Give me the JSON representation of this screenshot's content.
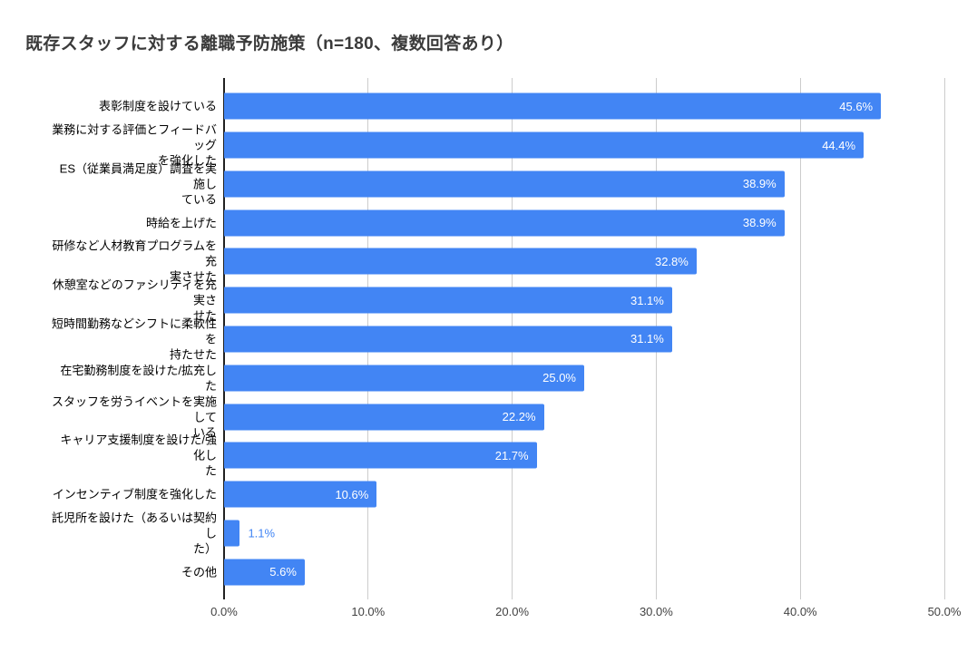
{
  "page": {
    "background": "#ffffff"
  },
  "chart_data": {
    "type": "bar",
    "orientation": "horizontal",
    "title": "既存スタッフに対する離職予防施策（n=180、複数回答あり）",
    "categories": [
      "表彰制度を設けている",
      "業務に対する評価とフィードバッグを強化した",
      "ES（従業員満足度）調査を実施している",
      "時給を上げた",
      "研修など人材教育プログラムを充実させた",
      "休憩室などのファシリティを充実させた",
      "短時間勤務などシフトに柔軟性を持たせた",
      "在宅勤務制度を設けた/拡充した",
      "スタッフを労うイベントを実施している",
      "キャリア支援制度を設けた/強化した",
      "インセンティブ制度を強化した",
      "託児所を設けた（あるいは契約した）",
      "その他"
    ],
    "label_lines": [
      [
        "表彰制度を設けている"
      ],
      [
        "業務に対する評価とフィードバッグ",
        "を強化した"
      ],
      [
        "ES（従業員満足度）調査を実施し",
        "ている"
      ],
      [
        "時給を上げた"
      ],
      [
        "研修など人材教育プログラムを充",
        "実させた"
      ],
      [
        "休憩室などのファシリティを充実さ",
        "せた"
      ],
      [
        "短時間勤務などシフトに柔軟性を",
        "持たせた"
      ],
      [
        "在宅勤務制度を設けた/拡充した"
      ],
      [
        "スタッフを労うイベントを実施して",
        "いる"
      ],
      [
        "キャリア支援制度を設けた/強化し",
        "た"
      ],
      [
        "インセンティブ制度を強化した"
      ],
      [
        "託児所を設けた（あるいは契約し",
        "た）"
      ],
      [
        "その他"
      ]
    ],
    "values": [
      45.6,
      44.4,
      38.9,
      38.9,
      32.8,
      31.1,
      31.1,
      25.0,
      22.2,
      21.7,
      10.6,
      1.1,
      5.6
    ],
    "value_labels": [
      "45.6%",
      "44.4%",
      "38.9%",
      "38.9%",
      "32.8%",
      "31.1%",
      "31.1%",
      "25.0%",
      "22.2%",
      "21.7%",
      "10.6%",
      "1.1%",
      "5.6%"
    ],
    "xlabel": "",
    "ylabel": "",
    "xlim": [
      0,
      50
    ],
    "x_ticks": [
      {
        "value": 0,
        "label": "0.0%"
      },
      {
        "value": 10,
        "label": "10.0%"
      },
      {
        "value": 20,
        "label": "20.0%"
      },
      {
        "value": 30,
        "label": "30.0%"
      },
      {
        "value": 40,
        "label": "40.0%"
      },
      {
        "value": 50,
        "label": "50.0%"
      }
    ],
    "grid": true,
    "legend": "none",
    "colors": {
      "bar": "#4285f4",
      "grid": "#cccccc",
      "axis": "#212121",
      "title": "#3b3b3b",
      "value_label_inside": "#ffffff",
      "value_label_outside": "#4285f4",
      "tick_label": "#424242",
      "category_label": "#000000"
    }
  }
}
